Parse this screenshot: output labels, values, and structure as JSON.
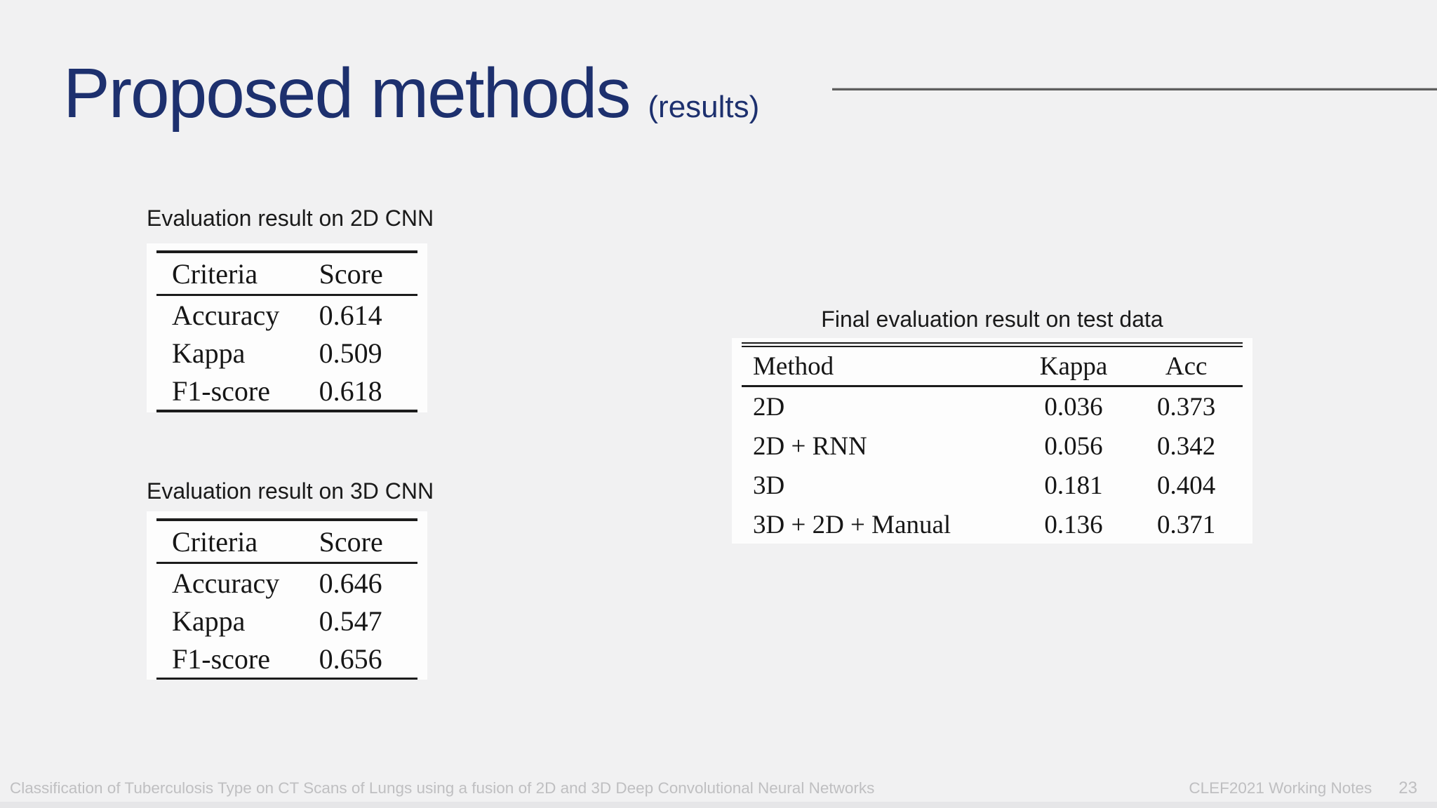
{
  "title": {
    "main": "Proposed methods",
    "sub": "(results)"
  },
  "colors": {
    "background": "#f1f1f2",
    "title": "#1d306e",
    "rule": "#5e5e5e",
    "card": "#fdfdfd",
    "table_text": "#161616",
    "caption_text": "#1a1a1a",
    "footer_text": "#bfbfc1"
  },
  "tables": {
    "cnn2d": {
      "caption": "Evaluation result on 2D CNN",
      "headers": [
        "Criteria",
        "Score"
      ],
      "rows": [
        [
          "Accuracy",
          "0.614"
        ],
        [
          "Kappa",
          "0.509"
        ],
        [
          "F1-score",
          "0.618"
        ]
      ]
    },
    "cnn3d": {
      "caption": "Evaluation result on 3D CNN",
      "headers": [
        "Criteria",
        "Score"
      ],
      "rows": [
        [
          "Accuracy",
          "0.646"
        ],
        [
          "Kappa",
          "0.547"
        ],
        [
          "F1-score",
          "0.656"
        ]
      ]
    },
    "final": {
      "caption": "Final evaluation result on test data",
      "headers": [
        "Method",
        "Kappa",
        "Acc"
      ],
      "rows": [
        [
          "2D",
          "0.036",
          "0.373"
        ],
        [
          "2D + RNN",
          "0.056",
          "0.342"
        ],
        [
          "3D",
          "0.181",
          "0.404"
        ],
        [
          "3D + 2D + Manual",
          "0.136",
          "0.371"
        ]
      ]
    }
  },
  "footer": {
    "left": "Classification of Tuberculosis Type on CT Scans of Lungs using a fusion of 2D and 3D Deep Convolutional Neural Networks",
    "venue": "CLEF2021 Working Notes",
    "page": "23"
  }
}
